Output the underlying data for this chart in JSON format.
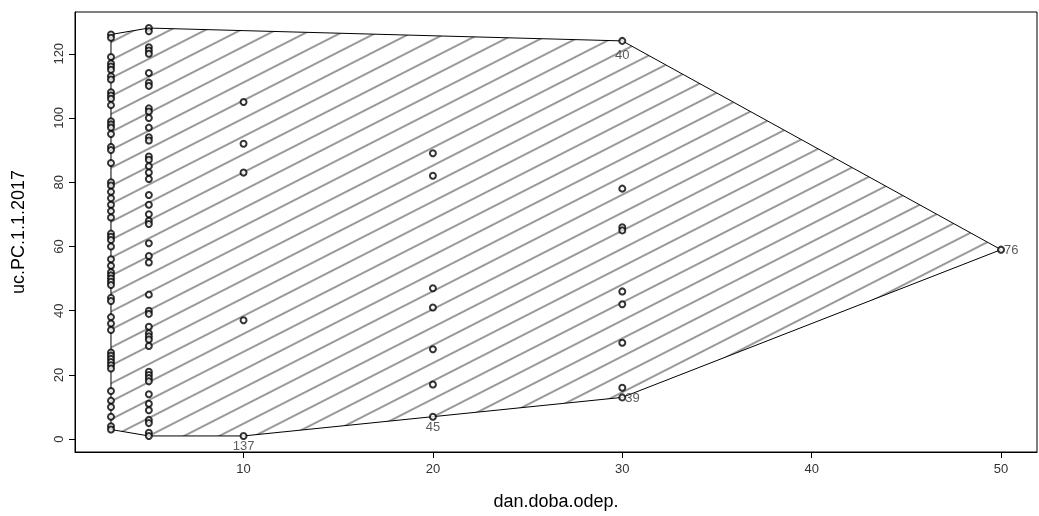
{
  "chart_data": {
    "type": "scatter",
    "xlabel": "dan.doba.odep.",
    "ylabel": "uc.PC.1.1.2017",
    "xlim": [
      1.1,
      51.9
    ],
    "xticks": [
      10,
      20,
      30,
      40,
      50
    ],
    "ylim": [
      -4,
      133
    ],
    "yticks": [
      0,
      20,
      40,
      60,
      80,
      100,
      120
    ],
    "grid": false,
    "marker": "circle",
    "series": [
      {
        "type": "area",
        "marker": "none",
        "color": "#000000",
        "x": [
          3,
          5,
          30,
          50,
          30,
          20,
          10,
          5,
          3,
          3
        ],
        "values": [
          126,
          128,
          124,
          59,
          13,
          7,
          1,
          1,
          3,
          126
        ]
      },
      {
        "color": "#000000",
        "x": [
          3,
          3,
          3,
          3,
          3,
          3,
          3,
          3,
          3,
          3,
          3,
          3,
          3,
          3,
          3,
          3,
          3,
          3,
          3,
          3,
          3,
          3,
          3,
          3,
          3,
          3,
          3,
          3,
          3,
          3,
          3,
          3,
          3,
          3,
          3,
          3,
          3,
          3,
          3,
          3,
          3,
          3,
          3,
          3,
          3,
          3,
          3,
          3,
          3,
          3,
          3,
          3,
          3,
          3,
          5,
          5,
          5,
          5,
          5,
          5,
          5,
          5,
          5,
          5,
          5,
          5,
          5,
          5,
          5,
          5,
          5,
          5,
          5,
          5,
          5,
          5,
          5,
          5,
          5,
          5,
          5,
          5,
          5,
          5,
          5,
          5,
          5,
          5,
          5,
          5,
          5,
          5,
          5,
          5,
          5,
          5,
          5,
          5,
          5,
          5,
          10,
          10,
          10,
          10,
          10,
          20,
          20,
          20,
          20,
          20,
          20,
          20,
          30,
          30,
          30,
          30,
          30,
          30,
          30,
          30,
          30,
          50
        ],
        "values": [
          126,
          125,
          119,
          117,
          116,
          115,
          113,
          112,
          108,
          107,
          106,
          104,
          99,
          98,
          97,
          95,
          91,
          90,
          86,
          80,
          79,
          77,
          75,
          73,
          71,
          69,
          64,
          63,
          62,
          60,
          56,
          54,
          52,
          51,
          50,
          49,
          48,
          44,
          43,
          38,
          36,
          34,
          27,
          26,
          25,
          24,
          23,
          22,
          15,
          12,
          10,
          7,
          4,
          3,
          128,
          127,
          122,
          121,
          120,
          114,
          111,
          110,
          103,
          102,
          100,
          97,
          94,
          93,
          88,
          87,
          85,
          83,
          81,
          76,
          73,
          70,
          68,
          67,
          61,
          57,
          55,
          45,
          40,
          39,
          35,
          33,
          32,
          31,
          29,
          21,
          20,
          19,
          18,
          14,
          11,
          9,
          6,
          5,
          2,
          1,
          105,
          92,
          83,
          37,
          1,
          89,
          82,
          47,
          41,
          28,
          17,
          7,
          124,
          78,
          66,
          65,
          46,
          42,
          30,
          16,
          13,
          59
        ]
      }
    ],
    "annotations": [
      {
        "text": "40",
        "x": 30,
        "y": 124
      },
      {
        "text": "76",
        "x": 50,
        "y": 59
      },
      {
        "text": "39",
        "x": 30,
        "y": 13
      },
      {
        "text": "45",
        "x": 20,
        "y": 7
      },
      {
        "text": "137",
        "x": 10,
        "y": 1
      }
    ]
  }
}
